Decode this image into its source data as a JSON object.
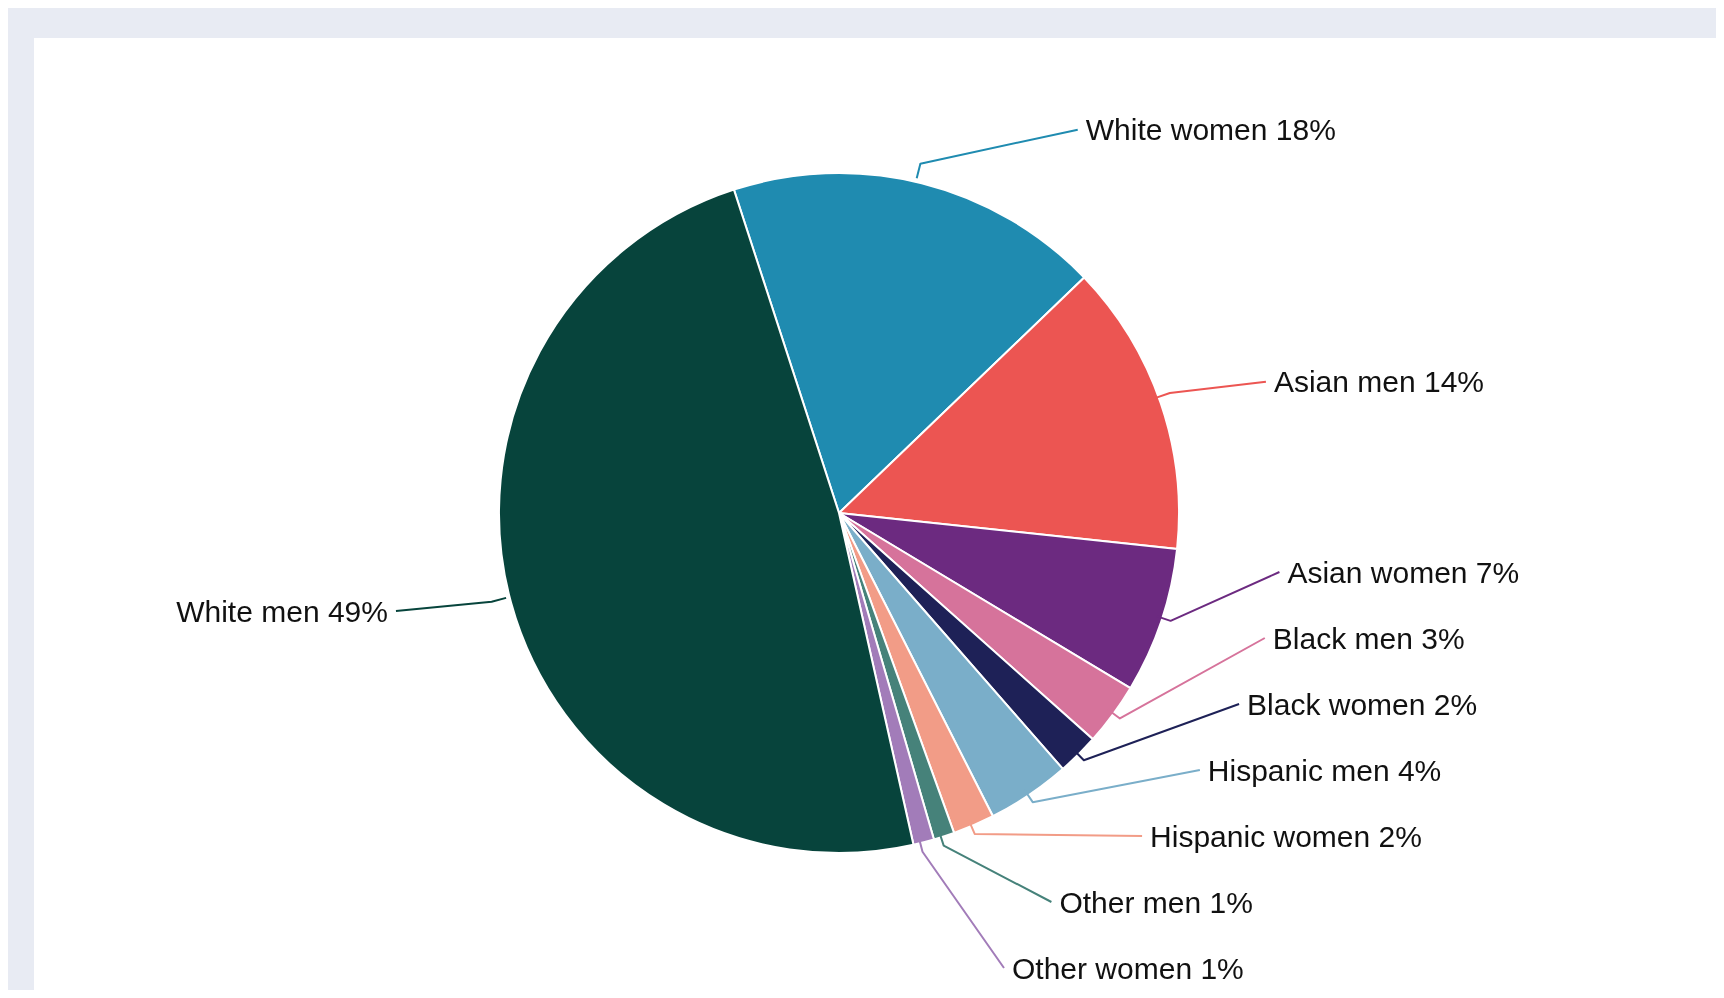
{
  "chart_data": {
    "type": "pie",
    "categories": [
      "White women",
      "Asian men",
      "Asian women",
      "Black men",
      "Black women",
      "Hispanic men",
      "Hispanic women",
      "Other men",
      "Other women",
      "White men"
    ],
    "values": [
      18,
      14,
      7,
      3,
      2,
      4,
      2,
      1,
      1,
      49
    ],
    "value_labels": [
      "18%",
      "14%",
      "7%",
      "3%",
      "2%",
      "4%",
      "2%",
      "1%",
      "1%",
      "49%"
    ],
    "colors": [
      "#1f8bb0",
      "#ec5552",
      "#6c2a80",
      "#d6739b",
      "#1e2157",
      "#7aaec9",
      "#f29c87",
      "#46827a",
      "#a27cb9",
      "#07443c"
    ]
  }
}
